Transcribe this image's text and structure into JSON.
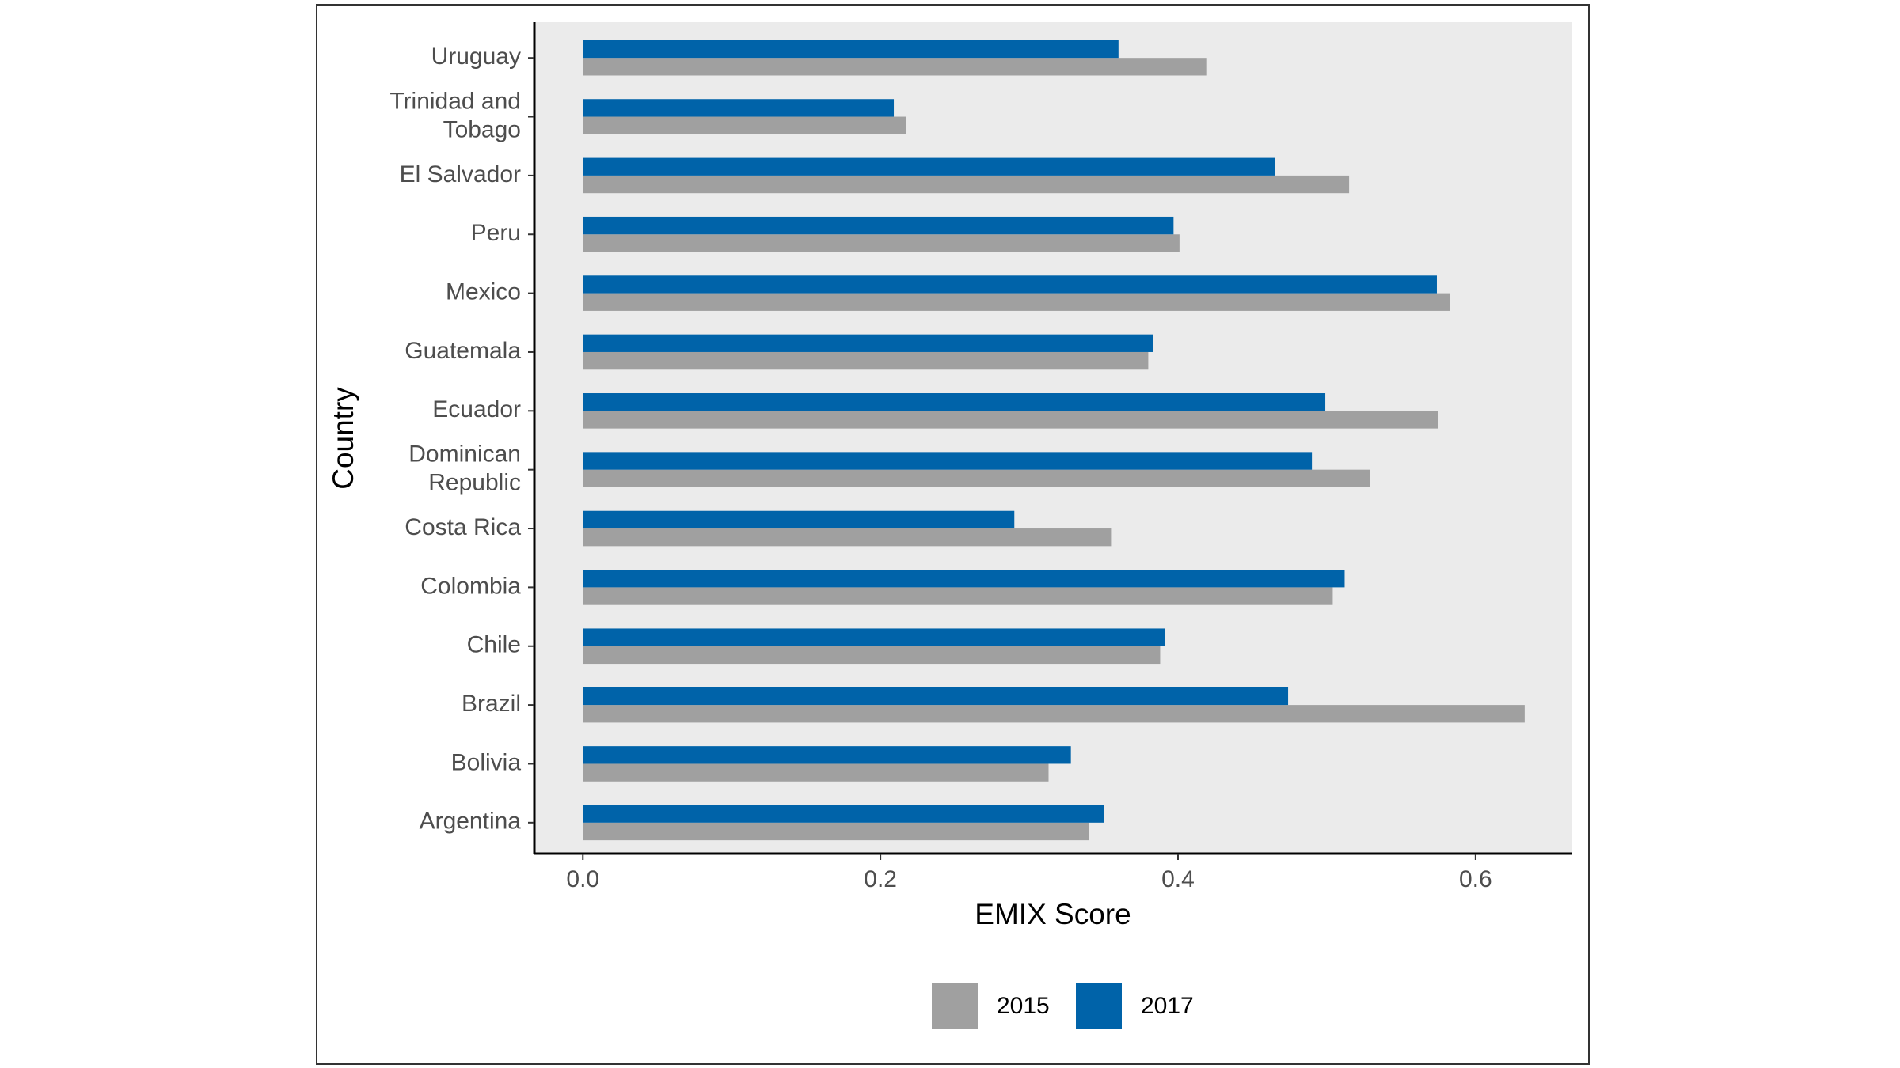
{
  "chart_data": {
    "type": "barh",
    "x_label": "EMIX Score",
    "y_label": "Country",
    "categories": [
      "Uruguay",
      "Trinidad and Tobago",
      "El Salvador",
      "Peru",
      "Mexico",
      "Guatemala",
      "Ecuador",
      "Dominican Republic",
      "Costa Rica",
      "Colombia",
      "Chile",
      "Brazil",
      "Bolivia",
      "Argentina"
    ],
    "series": [
      {
        "name": "2015",
        "color": "#a0a0a0",
        "values": [
          0.419,
          0.217,
          0.515,
          0.401,
          0.583,
          0.38,
          0.575,
          0.529,
          0.355,
          0.504,
          0.388,
          0.633,
          0.313,
          0.34
        ]
      },
      {
        "name": "2017",
        "color": "#0063a9",
        "values": [
          0.36,
          0.209,
          0.465,
          0.397,
          0.574,
          0.383,
          0.499,
          0.49,
          0.29,
          0.512,
          0.391,
          0.474,
          0.328,
          0.35
        ]
      }
    ],
    "xlim": [
      -0.0326,
      0.665
    ],
    "xticks": [
      {
        "value": 0,
        "label": "0.0"
      },
      0.2,
      0.4,
      0.6
    ],
    "legend": "bottom"
  }
}
